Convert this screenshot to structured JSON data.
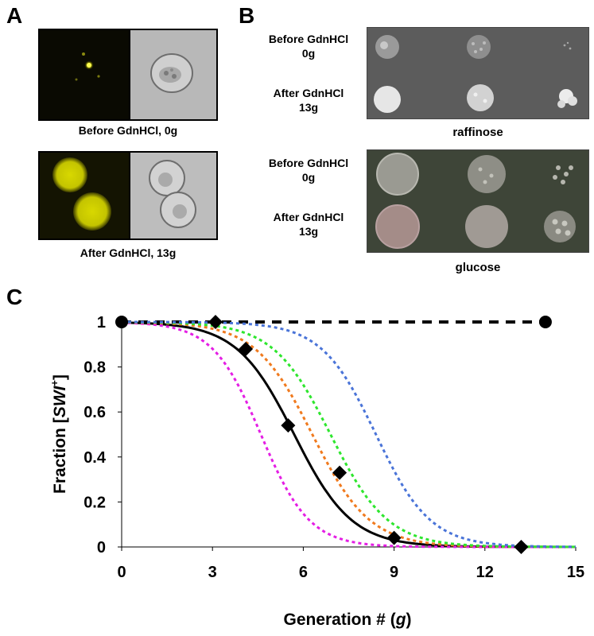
{
  "panels": {
    "a": "A",
    "b": "B",
    "c": "C"
  },
  "panel_a": {
    "captions": [
      "Before GdnHCl, 0g",
      "After GdnHCl, 13g"
    ]
  },
  "panel_b": {
    "raffinose_rows": [
      {
        "line1": "Before GdnHCl",
        "line2": "0g"
      },
      {
        "line1": "After GdnHCl",
        "line2": "13g"
      }
    ],
    "glucose_rows": [
      {
        "line1": "Before GdnHCl",
        "line2": "0g"
      },
      {
        "line1": "After GdnHCl",
        "line2": "13g"
      }
    ],
    "raffinose_label": "raffinose",
    "glucose_label": "glucose"
  },
  "colors": {
    "magenta": "#e41ee4",
    "orange": "#f07a1e",
    "green": "#2ee62e",
    "blue": "#4a74d8",
    "black": "#000000",
    "fluor": "#d8d800",
    "raffinose_bg": "#5c5c5c",
    "glucose_bg": "#3e4538"
  },
  "chart_data": {
    "type": "line",
    "xlabel_prefix": "Generation # (",
    "xlabel_var": "g",
    "xlabel_suffix": ")",
    "ylabel_prefix": "Fraction [",
    "ylabel_var": "SWI",
    "ylabel_sup": "+",
    "ylabel_suffix": "]",
    "xlim": [
      0,
      15
    ],
    "ylim": [
      0,
      1
    ],
    "xticks": [
      "0",
      "3",
      "6",
      "9",
      "12",
      "15"
    ],
    "yticks": [
      "0",
      "0.2",
      "0.4",
      "0.6",
      "0.8",
      "1"
    ],
    "series": [
      {
        "style": "dashed-black-circles",
        "x": [
          0,
          14
        ],
        "y": [
          1,
          1
        ]
      },
      {
        "style": "diamond-markers",
        "x": [
          3.1,
          4.1,
          5.5,
          7.2,
          9.0,
          13.2
        ],
        "y": [
          1.0,
          0.88,
          0.54,
          0.33,
          0.04,
          0.0
        ]
      },
      {
        "style": "solid-black-curve",
        "midpoint": 5.7,
        "width": 0.95
      },
      {
        "style": "dotted-magenta-curve",
        "midpoint": 4.6,
        "width": 0.8
      },
      {
        "style": "dotted-orange-curve",
        "midpoint": 6.3,
        "width": 0.95
      },
      {
        "style": "dotted-green-curve",
        "midpoint": 6.9,
        "width": 0.95
      },
      {
        "style": "dotted-blue-curve",
        "midpoint": 8.4,
        "width": 0.9
      }
    ]
  }
}
